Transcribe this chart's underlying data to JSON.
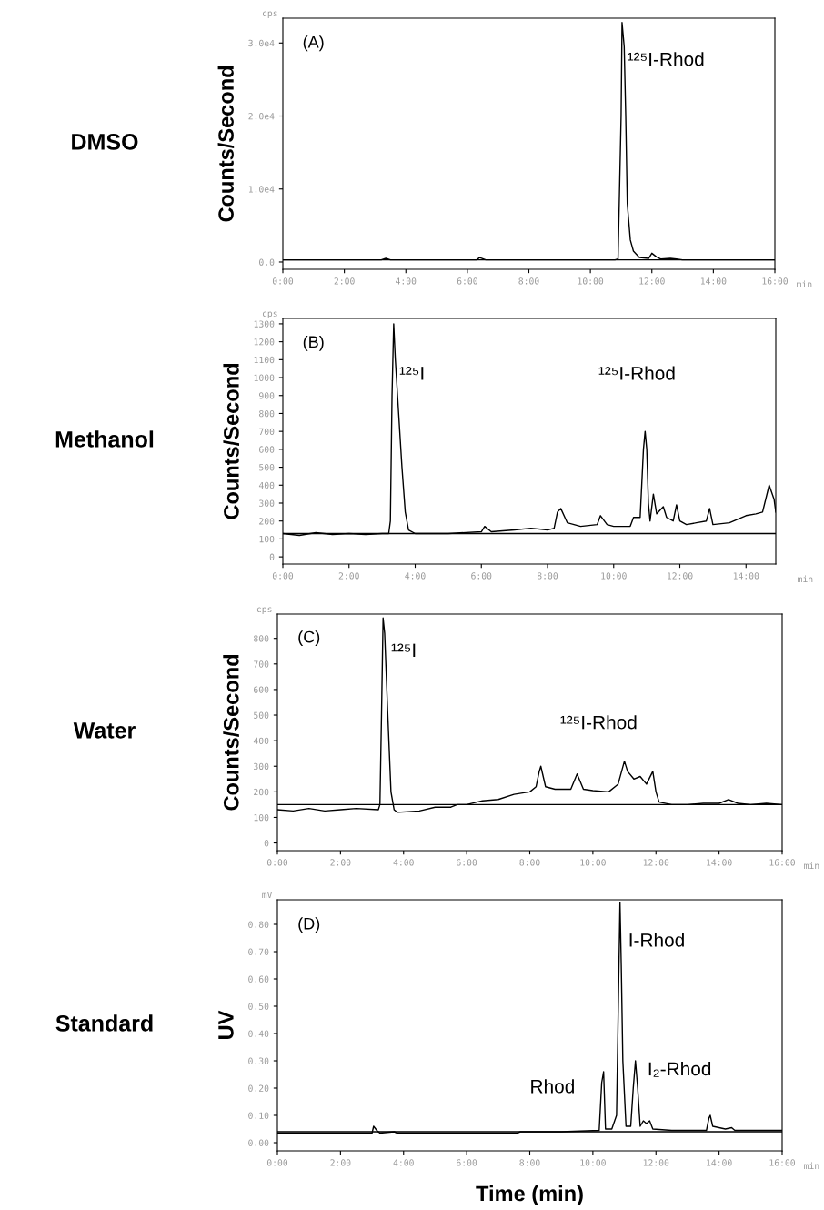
{
  "chart_data": [
    {
      "type": "line",
      "title": "DMSO",
      "ylabel": "Counts/Second",
      "color": "#000000",
      "x": [
        0,
        3.2,
        3.35,
        3.5,
        6.3,
        6.4,
        6.6,
        10.8,
        10.9,
        11.0,
        11.03,
        11.1,
        11.15,
        11.2,
        11.3,
        11.4,
        11.6,
        11.9,
        12.0,
        12.15,
        12.3,
        12.6,
        12.8,
        13.0,
        16
      ],
      "values": [
        300,
        300,
        500,
        300,
        300,
        600,
        300,
        300,
        400,
        20000,
        32800,
        29500,
        20000,
        8000,
        3000,
        1500,
        600,
        500,
        1200,
        700,
        400,
        500,
        400,
        300,
        300
      ],
      "xlim": [
        0,
        16
      ],
      "ylim": [
        -1000,
        33400
      ],
      "xticks": [
        {
          "value": 0,
          "label": "0:00"
        },
        {
          "value": 2,
          "label": "2:00"
        },
        {
          "value": 4,
          "label": "4:00"
        },
        {
          "value": 6,
          "label": "6:00"
        },
        {
          "value": 8,
          "label": "8:00"
        },
        {
          "value": 10,
          "label": "10:00"
        },
        {
          "value": 12,
          "label": "12:00"
        },
        {
          "value": 14,
          "label": "14:00"
        },
        {
          "value": 16,
          "label": "16:00"
        }
      ],
      "yticks": [
        {
          "value": 0,
          "label": "0.0"
        },
        {
          "value": 10000,
          "label": "1.0e4"
        },
        {
          "value": 20000,
          "label": "2.0e4"
        },
        {
          "value": 30000,
          "label": "3.0e4"
        }
      ],
      "ref_lines": [
        {
          "axis": "y",
          "value": 300
        }
      ],
      "annotations": [
        "(A)",
        "cps",
        "min",
        "¹²⁵I-Rhod"
      ]
    },
    {
      "type": "line",
      "title": "Methanol",
      "ylabel": "Counts/Second",
      "color": "#000000",
      "x": [
        0,
        0.5,
        1,
        1.5,
        2,
        2.5,
        3,
        3.2,
        3.25,
        3.3,
        3.35,
        3.4,
        3.5,
        3.6,
        3.7,
        3.8,
        4,
        5,
        6,
        6.1,
        6.3,
        7,
        7.5,
        8,
        8.2,
        8.3,
        8.4,
        8.6,
        9,
        9.5,
        9.6,
        9.8,
        10,
        10.5,
        10.6,
        10.8,
        10.9,
        10.95,
        11.0,
        11.05,
        11.1,
        11.2,
        11.3,
        11.5,
        11.6,
        11.8,
        11.9,
        12.0,
        12.2,
        12.5,
        12.8,
        12.9,
        13.0,
        13.5,
        14,
        14.3,
        14.5,
        14.7,
        14.85,
        14.9
      ],
      "values": [
        130,
        120,
        135,
        125,
        130,
        125,
        130,
        130,
        200,
        900,
        1300,
        1100,
        800,
        500,
        250,
        150,
        130,
        130,
        140,
        170,
        140,
        150,
        160,
        150,
        160,
        250,
        270,
        190,
        170,
        180,
        230,
        180,
        170,
        170,
        220,
        220,
        600,
        700,
        600,
        300,
        200,
        350,
        240,
        280,
        220,
        200,
        290,
        200,
        180,
        190,
        200,
        270,
        180,
        190,
        230,
        240,
        250,
        400,
        320,
        250
      ],
      "xlim": [
        0,
        14.9
      ],
      "ylim": [
        -40,
        1330
      ],
      "xticks": [
        {
          "value": 0,
          "label": "0:00"
        },
        {
          "value": 2,
          "label": "2:00"
        },
        {
          "value": 4,
          "label": "4:00"
        },
        {
          "value": 6,
          "label": "6:00"
        },
        {
          "value": 8,
          "label": "8:00"
        },
        {
          "value": 10,
          "label": "10:00"
        },
        {
          "value": 12,
          "label": "12:00"
        },
        {
          "value": 14,
          "label": "14:00"
        }
      ],
      "yticks": [
        0,
        100,
        200,
        300,
        400,
        500,
        600,
        700,
        800,
        900,
        1000,
        1100,
        1200,
        1300
      ],
      "ref_lines": [
        {
          "axis": "y",
          "value": 130
        }
      ],
      "annotations": [
        "(B)",
        "cps",
        "min",
        "¹²⁵I",
        "¹²⁵I-Rhod"
      ]
    },
    {
      "type": "line",
      "title": "Water",
      "ylabel": "Counts/Second",
      "color": "#000000",
      "x": [
        0,
        0.5,
        1,
        1.5,
        2,
        2.5,
        3.2,
        3.25,
        3.3,
        3.35,
        3.4,
        3.5,
        3.6,
        3.7,
        3.8,
        4.5,
        5,
        5.5,
        5.7,
        6,
        6.5,
        7,
        7.5,
        8,
        8.2,
        8.3,
        8.35,
        8.5,
        8.8,
        9.3,
        9.5,
        9.7,
        10,
        10.5,
        10.8,
        11,
        11.1,
        11.3,
        11.5,
        11.7,
        11.9,
        12,
        12.1,
        12.5,
        13,
        13.5,
        14,
        14.3,
        14.6,
        15,
        15.5,
        16
      ],
      "values": [
        130,
        125,
        135,
        125,
        130,
        135,
        130,
        150,
        500,
        880,
        820,
        500,
        200,
        130,
        120,
        125,
        140,
        140,
        150,
        150,
        165,
        170,
        190,
        200,
        220,
        280,
        300,
        220,
        210,
        210,
        270,
        210,
        205,
        200,
        230,
        320,
        280,
        250,
        260,
        230,
        280,
        200,
        160,
        150,
        150,
        155,
        155,
        170,
        155,
        150,
        155,
        150
      ],
      "xlim": [
        0,
        16
      ],
      "ylim": [
        -30,
        895
      ],
      "xticks": [
        {
          "value": 0,
          "label": "0:00"
        },
        {
          "value": 2,
          "label": "2:00"
        },
        {
          "value": 4,
          "label": "4:00"
        },
        {
          "value": 6,
          "label": "6:00"
        },
        {
          "value": 8,
          "label": "8:00"
        },
        {
          "value": 10,
          "label": "10:00"
        },
        {
          "value": 12,
          "label": "12:00"
        },
        {
          "value": 14,
          "label": "14:00"
        },
        {
          "value": 16,
          "label": "16:00"
        }
      ],
      "yticks": [
        0,
        100,
        200,
        300,
        400,
        500,
        600,
        700,
        800
      ],
      "ref_lines": [
        {
          "axis": "y",
          "value": 150
        }
      ],
      "annotations": [
        "(C)",
        "cps",
        "min",
        "¹²⁵I",
        "¹²⁵I-Rhod"
      ]
    },
    {
      "type": "line",
      "title": "Standard",
      "ylabel": "UV",
      "xlabel": "Time (min)",
      "color": "#000000",
      "x": [
        0,
        3.0,
        3.05,
        3.15,
        3.25,
        3.7,
        3.8,
        7.6,
        7.7,
        9,
        10.2,
        10.28,
        10.34,
        10.4,
        10.6,
        10.75,
        10.82,
        10.86,
        10.9,
        10.95,
        11.05,
        11.2,
        11.28,
        11.35,
        11.42,
        11.5,
        11.6,
        11.7,
        11.8,
        11.9,
        12.5,
        13.6,
        13.68,
        13.72,
        13.8,
        14.2,
        14.4,
        14.5,
        16
      ],
      "values": [
        0.035,
        0.035,
        0.06,
        0.045,
        0.035,
        0.04,
        0.035,
        0.035,
        0.04,
        0.04,
        0.045,
        0.22,
        0.26,
        0.05,
        0.05,
        0.1,
        0.6,
        0.88,
        0.65,
        0.3,
        0.06,
        0.06,
        0.2,
        0.3,
        0.2,
        0.06,
        0.08,
        0.07,
        0.08,
        0.05,
        0.045,
        0.045,
        0.09,
        0.1,
        0.06,
        0.05,
        0.055,
        0.045,
        0.045
      ],
      "xlim": [
        0,
        16
      ],
      "ylim": [
        -0.03,
        0.89
      ],
      "xticks": [
        {
          "value": 0,
          "label": "0:00"
        },
        {
          "value": 2,
          "label": "2:00"
        },
        {
          "value": 4,
          "label": "4:00"
        },
        {
          "value": 6,
          "label": "6:00"
        },
        {
          "value": 8,
          "label": "8:00"
        },
        {
          "value": 10,
          "label": "10:00"
        },
        {
          "value": 12,
          "label": "12:00"
        },
        {
          "value": 14,
          "label": "14:00"
        },
        {
          "value": 16,
          "label": "16:00"
        }
      ],
      "yticks": [
        {
          "value": 0,
          "label": "0.00"
        },
        {
          "value": 0.1,
          "label": "0.10"
        },
        {
          "value": 0.2,
          "label": "0.20"
        },
        {
          "value": 0.3,
          "label": "0.30"
        },
        {
          "value": 0.4,
          "label": "0.40"
        },
        {
          "value": 0.5,
          "label": "0.50"
        },
        {
          "value": 0.6,
          "label": "0.60"
        },
        {
          "value": 0.7,
          "label": "0.70"
        },
        {
          "value": 0.8,
          "label": "0.80"
        }
      ],
      "ref_lines": [
        {
          "axis": "y",
          "value": 0.04
        }
      ],
      "annotations": [
        "(D)",
        "mV",
        "min",
        "I-Rhod",
        "Rhod",
        "I₂-Rhod"
      ]
    }
  ]
}
